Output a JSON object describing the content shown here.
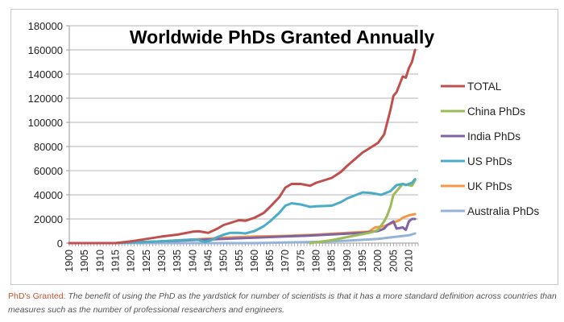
{
  "chart_data": {
    "type": "line",
    "title": "Worldwide PhDs Granted Annually",
    "xlabel": "",
    "ylabel": "",
    "xlim": [
      1900,
      2013
    ],
    "ylim": [
      0,
      180000
    ],
    "yticks": [
      0,
      20000,
      40000,
      60000,
      80000,
      100000,
      120000,
      140000,
      160000,
      180000
    ],
    "ytick_labels": [
      "0",
      "20000",
      "40000",
      "60000",
      "80000",
      "100000",
      "120000",
      "140000",
      "160000",
      "180000"
    ],
    "xticks": [
      1900,
      1905,
      1910,
      1915,
      1920,
      1925,
      1930,
      1935,
      1940,
      1945,
      1950,
      1955,
      1960,
      1965,
      1970,
      1975,
      1980,
      1985,
      1990,
      1995,
      2000,
      2005,
      2010
    ],
    "xtick_labels": [
      "1900",
      "1905",
      "1910",
      "1915",
      "1920",
      "1925",
      "1930",
      "1935",
      "1940",
      "1945",
      "1950",
      "1955",
      "1960",
      "1965",
      "1970",
      "1975",
      "1980",
      "1985",
      "1990",
      "1995",
      "2000",
      "2005",
      "2010"
    ],
    "grid": true,
    "legend_position": "right",
    "series": [
      {
        "name": "TOTAL",
        "color": "#c0504d",
        "points": [
          [
            1900,
            0
          ],
          [
            1915,
            0
          ],
          [
            1920,
            1500
          ],
          [
            1925,
            3500
          ],
          [
            1930,
            5500
          ],
          [
            1935,
            7000
          ],
          [
            1940,
            9500
          ],
          [
            1942,
            9800
          ],
          [
            1945,
            8500
          ],
          [
            1948,
            12000
          ],
          [
            1950,
            15000
          ],
          [
            1955,
            19000
          ],
          [
            1957,
            18500
          ],
          [
            1960,
            21000
          ],
          [
            1963,
            25000
          ],
          [
            1965,
            30000
          ],
          [
            1968,
            38000
          ],
          [
            1970,
            46000
          ],
          [
            1972,
            49000
          ],
          [
            1975,
            49000
          ],
          [
            1978,
            47500
          ],
          [
            1980,
            50000
          ],
          [
            1985,
            54000
          ],
          [
            1988,
            59000
          ],
          [
            1990,
            64000
          ],
          [
            1995,
            75000
          ],
          [
            2000,
            83000
          ],
          [
            2002,
            90000
          ],
          [
            2004,
            110000
          ],
          [
            2005,
            122000
          ],
          [
            2006,
            125000
          ],
          [
            2008,
            138000
          ],
          [
            2009,
            137000
          ],
          [
            2010,
            145000
          ],
          [
            2011,
            150000
          ],
          [
            2012,
            160000
          ]
        ]
      },
      {
        "name": "China PhDs",
        "color": "#9bbb59",
        "points": [
          [
            1978,
            0
          ],
          [
            1985,
            2500
          ],
          [
            1990,
            5000
          ],
          [
            1995,
            7500
          ],
          [
            1998,
            9000
          ],
          [
            2000,
            11000
          ],
          [
            2002,
            18000
          ],
          [
            2003,
            23000
          ],
          [
            2004,
            30000
          ],
          [
            2005,
            40000
          ],
          [
            2006,
            43000
          ],
          [
            2007,
            46000
          ],
          [
            2008,
            49000
          ],
          [
            2010,
            48000
          ],
          [
            2011,
            47500
          ],
          [
            2012,
            52000
          ]
        ]
      },
      {
        "name": "India PhDs",
        "color": "#8064a2",
        "points": [
          [
            1920,
            500
          ],
          [
            1930,
            1500
          ],
          [
            1940,
            2500
          ],
          [
            1950,
            3500
          ],
          [
            1960,
            4500
          ],
          [
            1970,
            5500
          ],
          [
            1980,
            6500
          ],
          [
            1990,
            7800
          ],
          [
            1995,
            8500
          ],
          [
            2000,
            10000
          ],
          [
            2002,
            12000
          ],
          [
            2003,
            15000
          ],
          [
            2005,
            18000
          ],
          [
            2006,
            12000
          ],
          [
            2008,
            13000
          ],
          [
            2009,
            11000
          ],
          [
            2010,
            18000
          ],
          [
            2011,
            20000
          ],
          [
            2012,
            20000
          ]
        ]
      },
      {
        "name": "US PhDs",
        "color": "#4bacc6",
        "points": [
          [
            1900,
            0
          ],
          [
            1915,
            0
          ],
          [
            1920,
            500
          ],
          [
            1930,
            1500
          ],
          [
            1940,
            3000
          ],
          [
            1942,
            2500
          ],
          [
            1944,
            1000
          ],
          [
            1946,
            2500
          ],
          [
            1948,
            5000
          ],
          [
            1950,
            7000
          ],
          [
            1952,
            8500
          ],
          [
            1955,
            8500
          ],
          [
            1957,
            8000
          ],
          [
            1960,
            10000
          ],
          [
            1963,
            14000
          ],
          [
            1965,
            18000
          ],
          [
            1968,
            25000
          ],
          [
            1970,
            31000
          ],
          [
            1972,
            33000
          ],
          [
            1975,
            32000
          ],
          [
            1978,
            30000
          ],
          [
            1980,
            30500
          ],
          [
            1985,
            31000
          ],
          [
            1988,
            34000
          ],
          [
            1990,
            37000
          ],
          [
            1995,
            42000
          ],
          [
            1998,
            41500
          ],
          [
            2001,
            40000
          ],
          [
            2004,
            43000
          ],
          [
            2006,
            48000
          ],
          [
            2008,
            49000
          ],
          [
            2009,
            48000
          ],
          [
            2010,
            49000
          ],
          [
            2011,
            50000
          ],
          [
            2012,
            53000
          ]
        ]
      },
      {
        "name": "UK PhDs",
        "color": "#f79646",
        "points": [
          [
            1915,
            0
          ],
          [
            1920,
            500
          ],
          [
            1930,
            1500
          ],
          [
            1940,
            3000
          ],
          [
            1950,
            4500
          ],
          [
            1960,
            5500
          ],
          [
            1970,
            6000
          ],
          [
            1980,
            7000
          ],
          [
            1990,
            8500
          ],
          [
            1997,
            9500
          ],
          [
            1999,
            13000
          ],
          [
            2002,
            14000
          ],
          [
            2005,
            17000
          ],
          [
            2007,
            19000
          ],
          [
            2008,
            21000
          ],
          [
            2010,
            23000
          ],
          [
            2012,
            24000
          ]
        ]
      },
      {
        "name": "Australia PhDs",
        "color": "#95b3d7",
        "points": [
          [
            1900,
            0
          ],
          [
            1960,
            0
          ],
          [
            1970,
            500
          ],
          [
            1980,
            1000
          ],
          [
            1990,
            2000
          ],
          [
            2000,
            3500
          ],
          [
            2005,
            5000
          ],
          [
            2010,
            6500
          ],
          [
            2012,
            8000
          ]
        ]
      }
    ]
  },
  "caption": {
    "lead": "PhD's Granted:",
    "text": " The benefit of using the PhD as the yardstick for number of scientists is that it has a more standard definition across countries than measures such as the number of professional researchers and engineers."
  }
}
